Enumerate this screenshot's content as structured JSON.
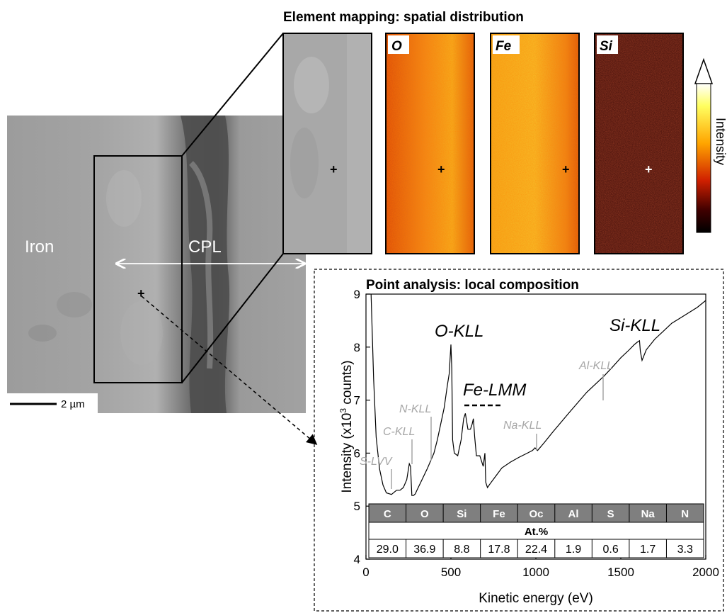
{
  "sem": {
    "label_left": "Iron",
    "label_right": "CPL",
    "scale_bar": "2 µm"
  },
  "mapping": {
    "title": "Element mapping: spatial distribution",
    "maps": [
      {
        "element": "O",
        "palette": "hot",
        "level": 0.55
      },
      {
        "element": "Fe",
        "palette": "hot",
        "level": 0.75
      },
      {
        "element": "Si",
        "palette": "hot",
        "level": 0.18
      }
    ],
    "colorbar_label": "Intensity",
    "colorbar_colors": [
      "#ffffff",
      "#ffff40",
      "#ff9a00",
      "#d02000",
      "#400000",
      "#000000"
    ]
  },
  "point": {
    "title": "Point analysis: local composition",
    "peaks_major": [
      "O-KLL",
      "Si-KLL",
      "Fe-LMM"
    ],
    "peaks_minor": [
      "S-LVV",
      "C-KLL",
      "N-KLL",
      "Na-KLL",
      "Al-KLL"
    ]
  },
  "chart_data": {
    "type": "line",
    "title": "Point analysis: local composition",
    "xlabel": "Kinetic energy (eV)",
    "ylabel_prefix": "Intensity (x10",
    "ylabel_sup": "3",
    "ylabel_suffix": " counts)",
    "xlim": [
      0,
      2000
    ],
    "ylim": [
      4,
      9
    ],
    "xticks": [
      0,
      500,
      1000,
      1500,
      2000
    ],
    "yticks": [
      4,
      5,
      6,
      7,
      8,
      9
    ],
    "series": [
      {
        "x": [
          30,
          45,
          60,
          80,
          100,
          120,
          150,
          180,
          200,
          220,
          240,
          255,
          262,
          270,
          280,
          290,
          300,
          330,
          360,
          380,
          400,
          420,
          440,
          460,
          480,
          490,
          500,
          505,
          510,
          520,
          540,
          560,
          575,
          585,
          600,
          615,
          625,
          632,
          640,
          650,
          670,
          690,
          700,
          705,
          715,
          730,
          760,
          800,
          850,
          900,
          950,
          980,
          995,
          1000,
          1010,
          1050,
          1100,
          1200,
          1300,
          1400,
          1450,
          1500,
          1550,
          1580,
          1600,
          1610,
          1615,
          1625,
          1650,
          1700,
          1750,
          1800,
          1850,
          1900,
          1950,
          2000
        ],
        "y": [
          9.0,
          7.4,
          6.3,
          5.7,
          5.4,
          5.25,
          5.22,
          5.3,
          5.3,
          5.35,
          5.5,
          5.8,
          5.75,
          5.2,
          5.2,
          5.23,
          5.3,
          5.5,
          5.7,
          5.85,
          6.0,
          6.25,
          6.55,
          6.85,
          7.3,
          7.5,
          8.05,
          7.6,
          6.25,
          6.0,
          5.95,
          6.25,
          6.65,
          6.75,
          6.45,
          6.45,
          6.55,
          6.65,
          6.3,
          5.95,
          5.95,
          5.75,
          6.0,
          5.45,
          5.35,
          5.42,
          5.55,
          5.72,
          5.83,
          5.92,
          6.0,
          6.05,
          6.1,
          6.08,
          6.05,
          6.2,
          6.4,
          6.78,
          7.15,
          7.45,
          7.62,
          7.8,
          7.95,
          8.05,
          8.1,
          8.12,
          7.92,
          7.75,
          7.95,
          8.15,
          8.3,
          8.45,
          8.55,
          8.65,
          8.75,
          8.88
        ]
      }
    ],
    "table": {
      "elements": [
        "C",
        "O",
        "Si",
        "Fe",
        "Oc",
        "Al",
        "S",
        "Na",
        "N"
      ],
      "unit": "At.%",
      "values": [
        "29.0",
        "36.9",
        "8.8",
        "17.8",
        "22.4",
        "1.9",
        "0.6",
        "1.7",
        "3.3"
      ]
    }
  }
}
